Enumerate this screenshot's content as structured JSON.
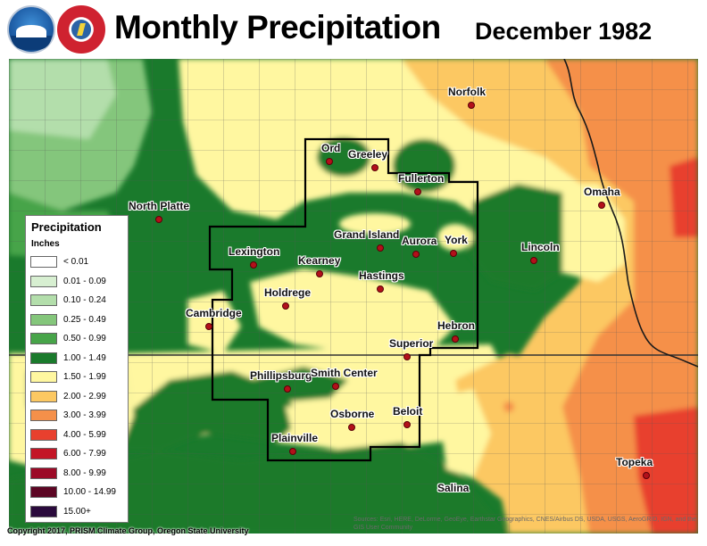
{
  "header": {
    "title": "Monthly Precipitation",
    "date": "December 1982",
    "logos": [
      "noaa-logo",
      "nws-logo"
    ]
  },
  "colors": {
    "lt_0_01": "#ffffff",
    "c_0_01_0_09": "#d7efd1",
    "c_0_10_0_24": "#b3deab",
    "c_0_25_0_49": "#84c67b",
    "c_0_50_0_99": "#47a449",
    "c_1_00_1_49": "#1a7a2c",
    "c_1_50_1_99": "#fff7a0",
    "c_2_00_2_99": "#fcc862",
    "c_3_00_3_99": "#f5904a",
    "c_4_00_5_99": "#e8402e",
    "c_6_00_7_99": "#c31526",
    "c_8_00_9_99": "#9c0a27",
    "c_10_00_14_99": "#5c0624",
    "c_15_plus": "#2a0a3c",
    "boundary": "#000000",
    "county_line": "#555555"
  },
  "legend": {
    "title": "Precipitation",
    "units": "Inches",
    "items": [
      {
        "label": "< 0.01",
        "color": "#ffffff"
      },
      {
        "label": "0.01 - 0.09",
        "color": "#d7efd1"
      },
      {
        "label": "0.10 - 0.24",
        "color": "#b3deab"
      },
      {
        "label": "0.25 - 0.49",
        "color": "#84c67b"
      },
      {
        "label": "0.50 - 0.99",
        "color": "#47a449"
      },
      {
        "label": "1.00 - 1.49",
        "color": "#1a7a2c"
      },
      {
        "label": "1.50 - 1.99",
        "color": "#fff7a0"
      },
      {
        "label": "2.00 - 2.99",
        "color": "#fcc862"
      },
      {
        "label": "3.00 - 3.99",
        "color": "#f5904a"
      },
      {
        "label": "4.00 - 5.99",
        "color": "#e8402e"
      },
      {
        "label": "6.00 - 7.99",
        "color": "#c31526"
      },
      {
        "label": "8.00 - 9.99",
        "color": "#9c0a27"
      },
      {
        "label": "10.00 - 14.99",
        "color": "#5c0624"
      },
      {
        "label": "15.00+",
        "color": "#2a0a3c"
      }
    ]
  },
  "cities": [
    {
      "name": "Norfolk"
    },
    {
      "name": "Ord"
    },
    {
      "name": "Greeley"
    },
    {
      "name": "Fullerton"
    },
    {
      "name": "North Platte"
    },
    {
      "name": "Omaha"
    },
    {
      "name": "Grand Island"
    },
    {
      "name": "Aurora"
    },
    {
      "name": "York"
    },
    {
      "name": "Lincoln"
    },
    {
      "name": "Lexington"
    },
    {
      "name": "Kearney"
    },
    {
      "name": "Hastings"
    },
    {
      "name": "Holdrege"
    },
    {
      "name": "Cambridge"
    },
    {
      "name": "Hebron"
    },
    {
      "name": "Superior"
    },
    {
      "name": "Phillipsburg"
    },
    {
      "name": "Smith Center"
    },
    {
      "name": "Osborne"
    },
    {
      "name": "Beloit"
    },
    {
      "name": "Plainville"
    },
    {
      "name": "Topeka"
    },
    {
      "name": "Salina"
    }
  ],
  "footer": {
    "copyright": "Copyright 2017, PRISM Climate Group, Oregon State University",
    "attribution": "Sources: Esri, HERE, DeLorme, GeoEye, Earthstar Geographics, CNES/Airbus DS, USDA, USGS, AeroGRID, IGN, and the GIS User Community"
  }
}
